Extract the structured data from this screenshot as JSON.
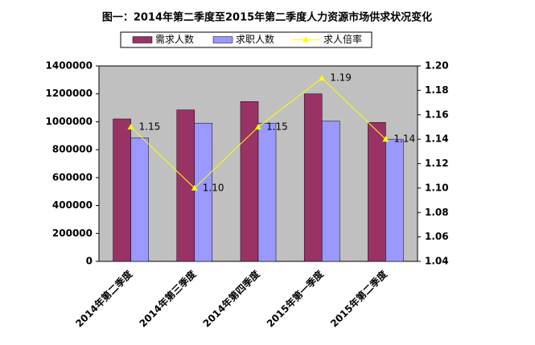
{
  "chart_data": {
    "type": "bar-line",
    "title": "图一：2014年第二季度至2015年第二季度人力资源市场供求状况变化",
    "categories": [
      "2014年第二季度",
      "2014年第三季度",
      "2014年第四季度",
      "2015年第一季度",
      "2015年第二季度"
    ],
    "series": [
      {
        "name": "需求人数",
        "type": "bar",
        "color": "#993366",
        "values": [
          1020000,
          1085000,
          1145000,
          1200000,
          995000
        ]
      },
      {
        "name": "求职人数",
        "type": "bar",
        "color": "#9999ff",
        "values": [
          885000,
          990000,
          990000,
          1005000,
          875000
        ]
      },
      {
        "name": "求人倍率",
        "type": "line",
        "axis": "y2",
        "color": "#ffff00",
        "values": [
          1.15,
          1.1,
          1.15,
          1.19,
          1.14
        ],
        "value_labels": [
          "1.15",
          "1.10",
          "1.15",
          "1.19",
          "1.14"
        ]
      }
    ],
    "ylim": [
      0,
      1400000
    ],
    "yticks": [
      0,
      200000,
      400000,
      600000,
      800000,
      1000000,
      1200000,
      1400000
    ],
    "y2lim": [
      1.04,
      1.2
    ],
    "y2ticks": [
      1.04,
      1.06,
      1.08,
      {
        "value": 1.1,
        "label": "1.10"
      },
      1.12,
      1.14,
      1.16,
      1.18,
      {
        "value": 1.2,
        "label": "1.20"
      }
    ],
    "plot_background": "#c0c0c0",
    "legend": "top"
  }
}
